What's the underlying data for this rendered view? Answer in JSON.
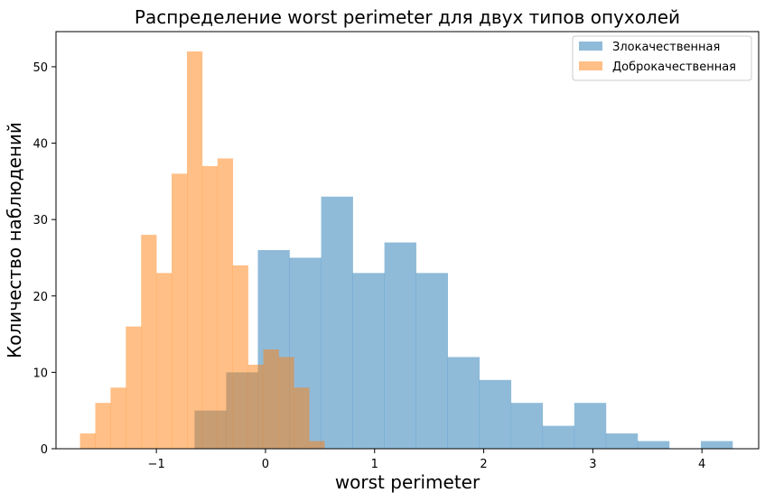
{
  "chart_data": {
    "type": "bar",
    "title": "Распределение worst perimeter для двух типов опухолей",
    "xlabel": "worst perimeter",
    "ylabel": "Количество наблюдений",
    "xlim": [
      -1.92,
      4.52
    ],
    "ylim": [
      0,
      54.6
    ],
    "xticks": [
      -1,
      0,
      1,
      2,
      3,
      4
    ],
    "xtick_labels": [
      "−1",
      "0",
      "1",
      "2",
      "3",
      "4"
    ],
    "yticks": [
      0,
      10,
      20,
      30,
      40,
      50
    ],
    "ytick_labels": [
      "0",
      "10",
      "20",
      "30",
      "40",
      "50"
    ],
    "grid": false,
    "legend_position": "top-right",
    "series": [
      {
        "name": "Злокачественная",
        "color": "#1f77b4",
        "opacity": 0.5,
        "bin_edges": [
          -0.65,
          -0.36,
          -0.07,
          0.22,
          0.51,
          0.8,
          1.09,
          1.38,
          1.67,
          1.96,
          2.25,
          2.54,
          2.83,
          3.12,
          3.41,
          3.7,
          3.99,
          4.28
        ],
        "values": [
          5,
          10,
          26,
          25,
          33,
          23,
          27,
          23,
          12,
          9,
          6,
          3,
          6,
          2,
          1,
          0,
          1
        ]
      },
      {
        "name": "Доброкачественная",
        "color": "#ff7f0e",
        "opacity": 0.5,
        "bin_edges": [
          -1.7,
          -1.56,
          -1.42,
          -1.28,
          -1.14,
          -1.0,
          -0.86,
          -0.72,
          -0.58,
          -0.44,
          -0.3,
          -0.16,
          -0.02,
          0.12,
          0.26,
          0.4,
          0.54
        ],
        "values": [
          2,
          6,
          8,
          16,
          28,
          23,
          36,
          52,
          37,
          38,
          24,
          11,
          13,
          12,
          8,
          1
        ]
      }
    ]
  }
}
